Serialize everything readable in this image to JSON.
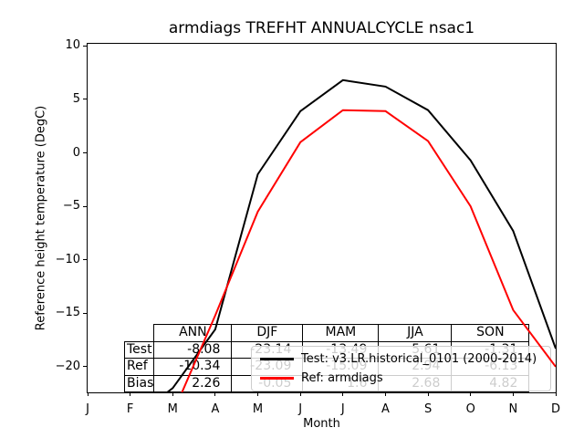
{
  "chart_data": {
    "type": "line",
    "title": "armdiags TREFHT ANNUALCYCLE nsac1",
    "xlabel": "Month",
    "ylabel": "Reference height temperature (DegC)",
    "x_tick_labels": [
      "J",
      "F",
      "M",
      "A",
      "M",
      "J",
      "J",
      "A",
      "S",
      "O",
      "N",
      "D"
    ],
    "y_ticks": [
      {
        "value": 10,
        "label": "10"
      },
      {
        "value": 5,
        "label": "5"
      },
      {
        "value": 0,
        "label": "0"
      },
      {
        "value": -5,
        "label": "−5"
      },
      {
        "value": -10,
        "label": "−10"
      },
      {
        "value": -15,
        "label": "−15"
      },
      {
        "value": -20,
        "label": "−20"
      }
    ],
    "ylim": [
      -22.4,
      10.2
    ],
    "grid": false,
    "legend_position": "lower right inside plot",
    "series": [
      {
        "name": "Test: v3.LR.historical_0101 (2000-2014)",
        "color": "#000000",
        "values": [
          -26.0,
          -25.1,
          -22.0,
          -16.5,
          -2.0,
          3.9,
          6.8,
          6.2,
          4.0,
          -0.7,
          -7.3,
          -18.3
        ]
      },
      {
        "name": "Ref: armdiags",
        "color": "#ff0000",
        "values": [
          -24.6,
          -24.6,
          -24.4,
          -15.2,
          -5.5,
          1.0,
          4.0,
          3.9,
          1.1,
          -5.0,
          -14.7,
          -20.0
        ]
      }
    ]
  },
  "stats_table": {
    "columns": [
      "ANN",
      "DJF",
      "MAM",
      "JJA",
      "SON"
    ],
    "rows": [
      {
        "label": "Test",
        "values": [
          "-8.08",
          "-23.14",
          "-13.49",
          "5.61",
          "-1.31"
        ]
      },
      {
        "label": "Ref",
        "values": [
          "-10.34",
          "-23.09",
          "-15.09",
          "2.94",
          "-6.13"
        ]
      },
      {
        "label": "Bias",
        "values": [
          "2.26",
          "-0.05",
          "1.6",
          "2.68",
          "4.82"
        ]
      }
    ]
  }
}
